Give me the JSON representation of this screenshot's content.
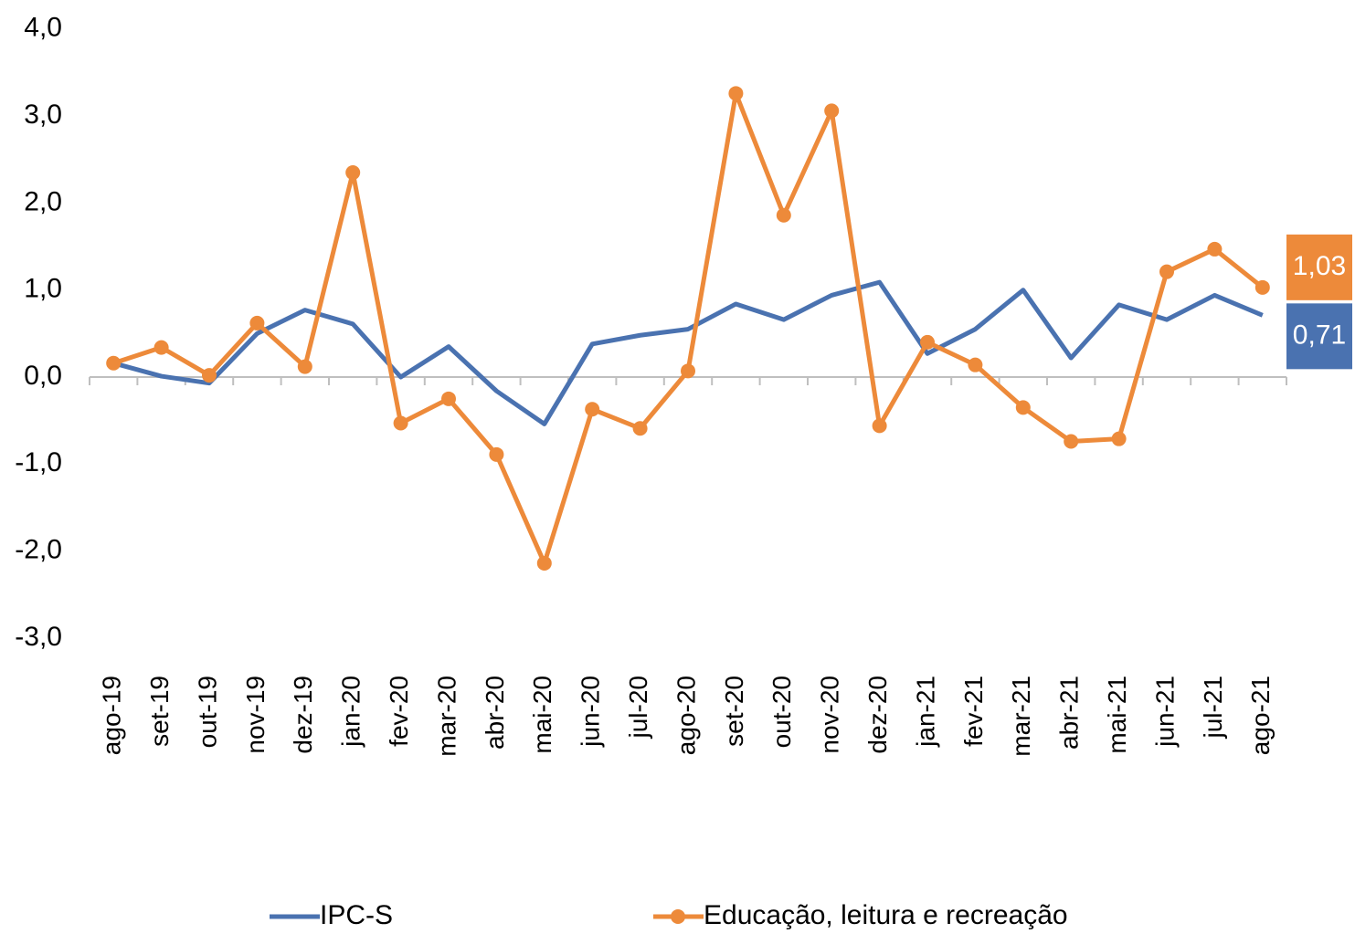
{
  "chart_data": {
    "type": "line",
    "categories": [
      "ago-19",
      "set-19",
      "out-19",
      "nov-19",
      "dez-19",
      "jan-20",
      "fev-20",
      "mar-20",
      "abr-20",
      "mai-20",
      "jun-20",
      "jul-20",
      "ago-20",
      "set-20",
      "out-20",
      "nov-20",
      "dez-20",
      "jan-21",
      "fev-21",
      "mar-21",
      "abr-21",
      "mai-21",
      "jun-21",
      "jul-21",
      "ago-21"
    ],
    "series": [
      {
        "name": "IPC-S",
        "color": "#4a72b0",
        "marker": false,
        "values": [
          0.16,
          0.01,
          -0.07,
          0.5,
          0.77,
          0.61,
          0.0,
          0.35,
          -0.16,
          -0.54,
          0.38,
          0.48,
          0.55,
          0.84,
          0.66,
          0.94,
          1.09,
          0.27,
          0.55,
          1.0,
          0.22,
          0.83,
          0.66,
          0.94,
          0.71
        ],
        "value_labels": [
          null,
          null,
          null,
          null,
          null,
          null,
          null,
          null,
          null,
          null,
          null,
          null,
          null,
          null,
          null,
          null,
          null,
          null,
          null,
          null,
          null,
          null,
          null,
          null,
          "0,71"
        ]
      },
      {
        "name": "Educação, leitura e recreação",
        "color": "#ed8a3a",
        "marker": true,
        "values": [
          0.16,
          0.34,
          0.02,
          0.62,
          0.12,
          2.35,
          -0.53,
          -0.25,
          -0.89,
          -2.14,
          -0.37,
          -0.59,
          0.07,
          3.26,
          1.86,
          3.06,
          -0.56,
          0.4,
          0.14,
          -0.35,
          -0.74,
          -0.71,
          1.21,
          1.47,
          1.03
        ],
        "value_labels": [
          null,
          null,
          null,
          null,
          null,
          null,
          null,
          null,
          null,
          null,
          null,
          null,
          null,
          null,
          null,
          null,
          null,
          null,
          null,
          null,
          null,
          null,
          null,
          null,
          "1,03"
        ]
      }
    ],
    "ylim": [
      -3,
      4
    ],
    "yticks": [
      {
        "value": 4,
        "label": "4,0"
      },
      {
        "value": 3,
        "label": "3,0"
      },
      {
        "value": 2,
        "label": "2,0"
      },
      {
        "value": 1,
        "label": "1,0"
      },
      {
        "value": 0,
        "label": "0,0"
      },
      {
        "value": -1,
        "label": "-1,0"
      },
      {
        "value": -2,
        "label": "-2,0"
      },
      {
        "value": -3,
        "label": "-3,0"
      }
    ],
    "grid": false
  }
}
